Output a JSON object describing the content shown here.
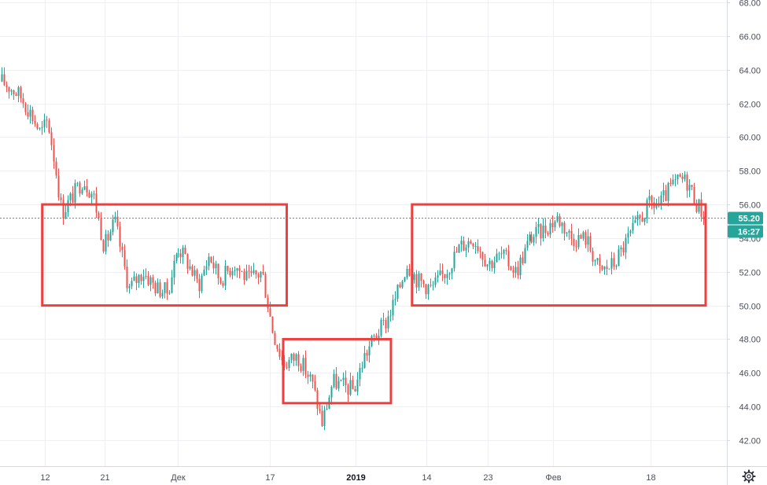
{
  "chart_data": {
    "type": "candlestick",
    "y_axis": {
      "min": 41,
      "max": 68,
      "ticks": [
        "42.00",
        "44.00",
        "46.00",
        "48.00",
        "50.00",
        "52.00",
        "54.00",
        "56.00",
        "58.00",
        "60.00",
        "62.00",
        "64.00",
        "66.00",
        "68.00"
      ]
    },
    "x_ticks": [
      {
        "label": "12",
        "bold": false
      },
      {
        "label": "21",
        "bold": false
      },
      {
        "label": "Дек",
        "bold": false
      },
      {
        "label": "17",
        "bold": false
      },
      {
        "label": "2019",
        "bold": true
      },
      {
        "label": "14",
        "bold": false
      },
      {
        "label": "23",
        "bold": false
      },
      {
        "label": "Фев",
        "bold": false
      },
      {
        "label": "18",
        "bold": false
      }
    ],
    "current_price": {
      "label": "55.20",
      "value": 55.2,
      "color": "#26a69a"
    },
    "countdown": {
      "label": "16:27",
      "color": "#26a69a"
    },
    "series_path": [
      {
        "t": 0,
        "p": 63.3
      },
      {
        "t": 0.01,
        "p": 63.0
      },
      {
        "t": 0.025,
        "p": 62.5
      },
      {
        "t": 0.04,
        "p": 61.5
      },
      {
        "t": 0.055,
        "p": 60.2
      },
      {
        "t": 0.065,
        "p": 61.0
      },
      {
        "t": 0.075,
        "p": 58.5
      },
      {
        "t": 0.085,
        "p": 55.5
      },
      {
        "t": 0.1,
        "p": 56.5
      },
      {
        "t": 0.115,
        "p": 57.5
      },
      {
        "t": 0.13,
        "p": 56.5
      },
      {
        "t": 0.145,
        "p": 53.5
      },
      {
        "t": 0.16,
        "p": 55.0
      },
      {
        "t": 0.18,
        "p": 51.0
      },
      {
        "t": 0.2,
        "p": 52.0
      },
      {
        "t": 0.22,
        "p": 51.0
      },
      {
        "t": 0.235,
        "p": 50.8
      },
      {
        "t": 0.25,
        "p": 53.5
      },
      {
        "t": 0.265,
        "p": 52.5
      },
      {
        "t": 0.28,
        "p": 51.2
      },
      {
        "t": 0.295,
        "p": 53.0
      },
      {
        "t": 0.31,
        "p": 51.5
      },
      {
        "t": 0.33,
        "p": 52.5
      },
      {
        "t": 0.35,
        "p": 51.5
      },
      {
        "t": 0.37,
        "p": 52.0
      },
      {
        "t": 0.385,
        "p": 48.5
      },
      {
        "t": 0.4,
        "p": 46.5
      },
      {
        "t": 0.42,
        "p": 47.0
      },
      {
        "t": 0.44,
        "p": 45.5
      },
      {
        "t": 0.455,
        "p": 43.0
      },
      {
        "t": 0.47,
        "p": 45.5
      },
      {
        "t": 0.485,
        "p": 45.2
      },
      {
        "t": 0.5,
        "p": 45.0
      },
      {
        "t": 0.515,
        "p": 47.0
      },
      {
        "t": 0.53,
        "p": 48.2
      },
      {
        "t": 0.545,
        "p": 49.0
      },
      {
        "t": 0.56,
        "p": 50.5
      },
      {
        "t": 0.575,
        "p": 52.5
      },
      {
        "t": 0.59,
        "p": 51.5
      },
      {
        "t": 0.61,
        "p": 51.0
      },
      {
        "t": 0.63,
        "p": 52.0
      },
      {
        "t": 0.65,
        "p": 53.5
      },
      {
        "t": 0.67,
        "p": 54.0
      },
      {
        "t": 0.69,
        "p": 52.5
      },
      {
        "t": 0.71,
        "p": 53.0
      },
      {
        "t": 0.73,
        "p": 52.0
      },
      {
        "t": 0.75,
        "p": 54.0
      },
      {
        "t": 0.77,
        "p": 54.5
      },
      {
        "t": 0.79,
        "p": 55.2
      },
      {
        "t": 0.81,
        "p": 54.0
      },
      {
        "t": 0.83,
        "p": 54.0
      },
      {
        "t": 0.85,
        "p": 52.0
      },
      {
        "t": 0.87,
        "p": 52.5
      },
      {
        "t": 0.89,
        "p": 54.0
      },
      {
        "t": 0.905,
        "p": 55.0
      },
      {
        "t": 0.92,
        "p": 56.0
      },
      {
        "t": 0.935,
        "p": 56.0
      },
      {
        "t": 0.95,
        "p": 57.0
      },
      {
        "t": 0.965,
        "p": 57.5
      },
      {
        "t": 0.975,
        "p": 57.3
      },
      {
        "t": 0.985,
        "p": 56.2
      },
      {
        "t": 1,
        "p": 55.2
      }
    ],
    "highlight_ranges": [
      {
        "t_start": 0.06,
        "t_end": 0.405,
        "price_top": 56.0,
        "price_bottom": 50.0
      },
      {
        "t_start": 0.4,
        "t_end": 0.553,
        "price_top": 48.0,
        "price_bottom": 44.2
      },
      {
        "t_start": 0.583,
        "t_end": 1.0,
        "price_top": 56.0,
        "price_bottom": 50.0
      }
    ],
    "up_color": "#26a69a",
    "down_color": "#ef5350",
    "box_color": "#ef3e3e"
  },
  "settings_icon": "gear-icon"
}
